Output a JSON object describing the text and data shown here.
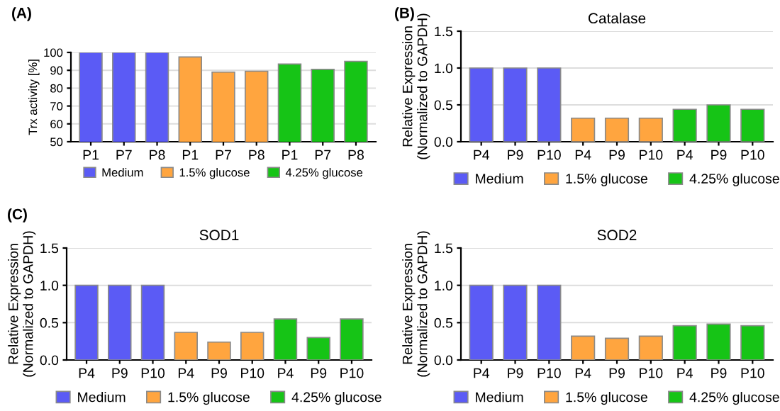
{
  "chart_data": [
    {
      "type": "bar",
      "annotations": [
        "(A)"
      ],
      "ylabel": "Trx activity [%]",
      "categories": [
        "P1",
        "P7",
        "P8",
        "P1",
        "P7",
        "P8",
        "P1",
        "P7",
        "P8"
      ],
      "series": [
        {
          "name": "Medium",
          "color": "#5b5bf5",
          "values": [
            100,
            100,
            100,
            null,
            null,
            null,
            null,
            null,
            null
          ]
        },
        {
          "name": "1.5% glucose",
          "color": "#ffa53f",
          "values": [
            null,
            null,
            null,
            97.5,
            89,
            89.5,
            null,
            null,
            null
          ]
        },
        {
          "name": "4.25% glucose",
          "color": "#16c416",
          "values": [
            null,
            null,
            null,
            null,
            null,
            null,
            93.5,
            90.5,
            95
          ]
        }
      ],
      "ylim": [
        50,
        100
      ],
      "yticks": [
        50,
        60,
        70,
        80,
        90,
        100
      ],
      "grid": "y",
      "legend": "bottom"
    },
    {
      "type": "bar",
      "annotations": [
        "(B)"
      ],
      "title": "Catalase",
      "ylabel": "Relative Expression\n(Normalized to GAPDH)",
      "categories": [
        "P4",
        "P9",
        "P10",
        "P4",
        "P9",
        "P10",
        "P4",
        "P9",
        "P10"
      ],
      "series": [
        {
          "name": "Medium",
          "color": "#5b5bf5",
          "values": [
            1,
            1,
            1,
            null,
            null,
            null,
            null,
            null,
            null
          ]
        },
        {
          "name": "1.5% glucose",
          "color": "#ffa53f",
          "values": [
            null,
            null,
            null,
            0.32,
            0.32,
            0.32,
            null,
            null,
            null
          ]
        },
        {
          "name": "4.25% glucose",
          "color": "#16c416",
          "values": [
            null,
            null,
            null,
            null,
            null,
            null,
            0.44,
            0.5,
            0.44
          ]
        }
      ],
      "ylim": [
        0,
        1.5
      ],
      "yticks": [
        {
          "value": 0,
          "label": "0.0"
        },
        {
          "value": 0.5,
          "label": "0.5"
        },
        {
          "value": 1,
          "label": "1.0"
        },
        {
          "value": 1.5,
          "label": "1.5"
        }
      ],
      "grid": "y",
      "legend": "bottom"
    },
    {
      "type": "bar",
      "annotations": [
        "(C)"
      ],
      "title": "SOD1",
      "ylabel": "Relative Expression\n(Normalized to GAPDH)",
      "categories": [
        "P4",
        "P9",
        "P10",
        "P4",
        "P9",
        "P10",
        "P4",
        "P9",
        "P10"
      ],
      "series": [
        {
          "name": "Medium",
          "color": "#5b5bf5",
          "values": [
            1,
            1,
            1,
            null,
            null,
            null,
            null,
            null,
            null
          ]
        },
        {
          "name": "1.5% glucose",
          "color": "#ffa53f",
          "values": [
            null,
            null,
            null,
            0.37,
            0.24,
            0.37,
            null,
            null,
            null
          ]
        },
        {
          "name": "4.25% glucose",
          "color": "#16c416",
          "values": [
            null,
            null,
            null,
            null,
            null,
            null,
            0.55,
            0.3,
            0.55
          ]
        }
      ],
      "ylim": [
        0,
        1.5
      ],
      "yticks": [
        {
          "value": 0,
          "label": "0.0"
        },
        {
          "value": 0.5,
          "label": "0.5"
        },
        {
          "value": 1,
          "label": "1.0"
        },
        {
          "value": 1.5,
          "label": "1.5"
        }
      ],
      "grid": "y",
      "legend": "bottom"
    },
    {
      "type": "bar",
      "title": "SOD2",
      "ylabel": "Relative Expression\n(Normalized to GAPDH)",
      "categories": [
        "P4",
        "P9",
        "P10",
        "P4",
        "P9",
        "P10",
        "P4",
        "P9",
        "P10"
      ],
      "series": [
        {
          "name": "Medium",
          "color": "#5b5bf5",
          "values": [
            1,
            1,
            1,
            null,
            null,
            null,
            null,
            null,
            null
          ]
        },
        {
          "name": "1.5% glucose",
          "color": "#ffa53f",
          "values": [
            null,
            null,
            null,
            0.32,
            0.29,
            0.32,
            null,
            null,
            null
          ]
        },
        {
          "name": "4.25% glucose",
          "color": "#16c416",
          "values": [
            null,
            null,
            null,
            null,
            null,
            null,
            0.46,
            0.48,
            0.46
          ]
        }
      ],
      "ylim": [
        0,
        1.5
      ],
      "yticks": [
        {
          "value": 0,
          "label": "0.0"
        },
        {
          "value": 0.5,
          "label": "0.5"
        },
        {
          "value": 1,
          "label": "1.0"
        },
        {
          "value": 1.5,
          "label": "1.5"
        }
      ],
      "grid": "y",
      "legend": "bottom"
    }
  ]
}
